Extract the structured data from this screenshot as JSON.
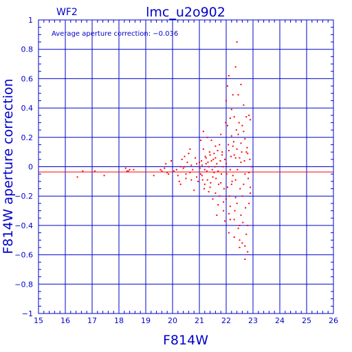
{
  "chart_data": {
    "type": "scatter",
    "title": "lmc_u2o902",
    "corner_label": "WF2",
    "annotation": "Average aperture correction: −0.036",
    "xlabel": "F814W",
    "ylabel": "F814W aperture correction",
    "xlim": [
      15,
      26
    ],
    "ylim": [
      -1,
      1
    ],
    "grid": true,
    "x_ticks": [
      15,
      16,
      17,
      18,
      19,
      20,
      21,
      22,
      23,
      24,
      25,
      26
    ],
    "x_tick_labels": [
      "15",
      "16",
      "17",
      "18",
      "19",
      "20",
      "21",
      "22",
      "23",
      "24",
      "25",
      "26"
    ],
    "y_ticks": [
      -1,
      -0.8,
      -0.6,
      -0.4,
      -0.2,
      0,
      0.2,
      0.4,
      0.6,
      0.8,
      1
    ],
    "y_tick_labels": [
      "−1",
      "−0.8",
      "−0.6",
      "−0.4",
      "−0.2",
      "0",
      "0.2",
      "0.4",
      "0.6",
      "0.8",
      "1"
    ],
    "reference_lines": [
      {
        "y": 0,
        "color": "#0000cc"
      },
      {
        "y": -0.036,
        "color": "#ff0000"
      }
    ],
    "colors": {
      "axes": "#0000cc",
      "points": "#ff0000",
      "mean_line": "#ff0000"
    },
    "points": [
      [
        16.45,
        -0.07
      ],
      [
        16.65,
        -0.03
      ],
      [
        17.1,
        -0.03
      ],
      [
        17.45,
        -0.06
      ],
      [
        18.25,
        -0.01
      ],
      [
        18.3,
        -0.03
      ],
      [
        18.4,
        -0.02
      ],
      [
        18.55,
        -0.02
      ],
      [
        18.35,
        -0.03
      ],
      [
        19.3,
        -0.06
      ],
      [
        19.55,
        -0.02
      ],
      [
        19.6,
        -0.03
      ],
      [
        19.7,
        -0.01
      ],
      [
        19.75,
        0.02
      ],
      [
        19.8,
        -0.04
      ],
      [
        19.95,
        0.04
      ],
      [
        19.85,
        -0.05
      ],
      [
        20.05,
        -0.03
      ],
      [
        20.15,
        -0.02
      ],
      [
        20.2,
        -0.06
      ],
      [
        20.25,
        -0.1
      ],
      [
        20.3,
        -0.12
      ],
      [
        20.35,
        0.05
      ],
      [
        20.4,
        -0.01
      ],
      [
        20.45,
        0.07
      ],
      [
        20.5,
        -0.08
      ],
      [
        20.55,
        0.03
      ],
      [
        20.6,
        0.09
      ],
      [
        20.65,
        -0.04
      ],
      [
        20.7,
        0.01
      ],
      [
        20.75,
        -0.02
      ],
      [
        20.8,
        -0.16
      ],
      [
        20.85,
        0.06
      ],
      [
        20.9,
        -0.07
      ],
      [
        20.95,
        -0.1
      ],
      [
        20.3,
        0.0
      ],
      [
        20.5,
        -0.05
      ],
      [
        20.7,
        -0.09
      ],
      [
        20.9,
        0.02
      ],
      [
        20.65,
        0.12
      ],
      [
        20.45,
        0.0
      ],
      [
        21.0,
        0.03
      ],
      [
        21.05,
        -0.05
      ],
      [
        21.1,
        0.01
      ],
      [
        21.15,
        0.12
      ],
      [
        21.2,
        -0.02
      ],
      [
        21.25,
        0.06
      ],
      [
        21.3,
        -0.09
      ],
      [
        21.35,
        0.0
      ],
      [
        21.4,
        -0.14
      ],
      [
        21.45,
        0.04
      ],
      [
        21.5,
        -0.07
      ],
      [
        21.55,
        0.09
      ],
      [
        21.6,
        -0.18
      ],
      [
        21.65,
        0.02
      ],
      [
        21.7,
        -0.03
      ],
      [
        21.75,
        0.15
      ],
      [
        21.8,
        -0.11
      ],
      [
        21.85,
        0.08
      ],
      [
        21.9,
        -0.24
      ],
      [
        21.95,
        0.05
      ],
      [
        21.05,
        0.18
      ],
      [
        21.2,
        -0.12
      ],
      [
        21.3,
        0.2
      ],
      [
        21.4,
        0.08
      ],
      [
        21.5,
        -0.22
      ],
      [
        21.6,
        0.14
      ],
      [
        21.7,
        -0.26
      ],
      [
        21.8,
        0.22
      ],
      [
        21.9,
        -0.3
      ],
      [
        21.1,
        -0.06
      ],
      [
        21.35,
        -0.17
      ],
      [
        21.55,
        -0.04
      ],
      [
        21.75,
        -0.2
      ],
      [
        21.85,
        0.1
      ],
      [
        21.15,
        0.24
      ],
      [
        21.45,
        0.18
      ],
      [
        21.65,
        -0.33
      ],
      [
        21.95,
        -0.37
      ],
      [
        21.25,
        0.02
      ],
      [
        21.6,
        0.06
      ],
      [
        22.0,
        0.02
      ],
      [
        22.05,
        -0.14
      ],
      [
        22.1,
        0.11
      ],
      [
        22.15,
        -0.27
      ],
      [
        22.2,
        0.21
      ],
      [
        22.25,
        -0.06
      ],
      [
        22.3,
        0.34
      ],
      [
        22.35,
        -0.21
      ],
      [
        22.4,
        0.12
      ],
      [
        22.45,
        -0.42
      ],
      [
        22.5,
        0.06
      ],
      [
        22.55,
        -0.33
      ],
      [
        22.6,
        0.28
      ],
      [
        22.65,
        -0.12
      ],
      [
        22.7,
        0.19
      ],
      [
        22.75,
        -0.46
      ],
      [
        22.8,
        0.09
      ],
      [
        22.85,
        -0.25
      ],
      [
        22.9,
        0.32
      ],
      [
        22.0,
        0.45
      ],
      [
        22.05,
        0.55
      ],
      [
        22.1,
        0.62
      ],
      [
        22.15,
        -0.36
      ],
      [
        22.2,
        0.39
      ],
      [
        22.25,
        0.49
      ],
      [
        22.3,
        -0.48
      ],
      [
        22.35,
        0.68
      ],
      [
        22.4,
        0.85
      ],
      [
        22.45,
        0.49
      ],
      [
        22.5,
        -0.55
      ],
      [
        22.55,
        0.56
      ],
      [
        22.6,
        -0.52
      ],
      [
        22.65,
        0.42
      ],
      [
        22.7,
        -0.63
      ],
      [
        22.8,
        -0.58
      ],
      [
        22.85,
        0.35
      ],
      [
        22.75,
        0.34
      ],
      [
        22.02,
        -0.05
      ],
      [
        22.08,
        0.15
      ],
      [
        22.12,
        -0.2
      ],
      [
        22.18,
        0.07
      ],
      [
        22.22,
        -0.1
      ],
      [
        22.28,
        0.17
      ],
      [
        22.32,
        -0.3
      ],
      [
        22.38,
        0.25
      ],
      [
        22.42,
        -0.02
      ],
      [
        22.48,
        0.3
      ],
      [
        22.52,
        -0.15
      ],
      [
        22.58,
        0.1
      ],
      [
        22.62,
        -0.38
      ],
      [
        22.68,
        0.04
      ],
      [
        22.72,
        -0.28
      ],
      [
        22.78,
        0.13
      ],
      [
        22.82,
        -0.08
      ],
      [
        22.88,
        0.05
      ],
      [
        22.0,
        -0.22
      ],
      [
        22.1,
        -0.32
      ],
      [
        22.2,
        -0.12
      ],
      [
        22.3,
        0.08
      ],
      [
        22.4,
        -0.25
      ],
      [
        22.5,
        -0.4
      ],
      [
        22.6,
        -0.2
      ],
      [
        22.7,
        -0.05
      ],
      [
        22.8,
        -0.4
      ],
      [
        22.9,
        -0.18
      ],
      [
        22.05,
        0.28
      ],
      [
        22.15,
        0.33
      ],
      [
        22.25,
        0.14
      ],
      [
        22.35,
        0.06
      ],
      [
        22.45,
        0.22
      ],
      [
        22.55,
        0.16
      ],
      [
        22.65,
        0.24
      ],
      [
        22.75,
        0.1
      ],
      [
        22.85,
        -0.04
      ],
      [
        22.1,
        -0.45
      ],
      [
        22.3,
        -0.36
      ],
      [
        22.5,
        -0.5
      ],
      [
        22.7,
        -0.54
      ],
      [
        22.9,
        -0.14
      ],
      [
        22.95,
        0.0
      ],
      [
        22.55,
        0.03
      ],
      [
        22.35,
        -0.09
      ],
      [
        22.15,
        -0.02
      ],
      [
        21.98,
        0.3
      ],
      [
        21.92,
        -0.15
      ],
      [
        21.88,
        0.0
      ],
      [
        21.82,
        -0.05
      ],
      [
        21.78,
        0.04
      ],
      [
        21.72,
        -0.12
      ],
      [
        21.68,
        0.11
      ],
      [
        21.62,
        -0.08
      ],
      [
        21.58,
        0.0
      ],
      [
        21.52,
        0.05
      ],
      [
        21.48,
        -0.02
      ],
      [
        21.42,
        -0.11
      ],
      [
        21.38,
        0.1
      ],
      [
        21.32,
        0.03
      ],
      [
        21.28,
        -0.03
      ],
      [
        21.22,
        0.07
      ],
      [
        21.18,
        -0.15
      ],
      [
        21.12,
        -0.09
      ],
      [
        21.08,
        0.04
      ],
      [
        21.02,
        -0.01
      ]
    ]
  }
}
